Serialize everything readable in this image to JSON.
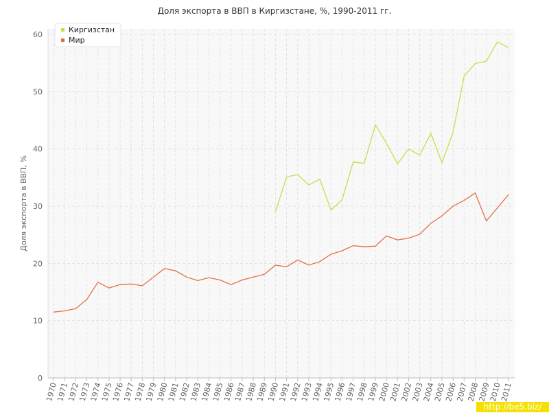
{
  "chart_data": {
    "type": "line",
    "title": "Доля экспорта в ВВП в Киргизстане, %, 1990-2011 гг.",
    "y_label": "Доля экспорта в ВВП, %",
    "categories": [
      "1970",
      "1971",
      "1972",
      "1973",
      "1974",
      "1975",
      "1976",
      "1977",
      "1978",
      "1979",
      "1980",
      "1981",
      "1982",
      "1983",
      "1984",
      "1985",
      "1986",
      "1987",
      "1988",
      "1989",
      "1990",
      "1991",
      "1992",
      "1993",
      "1994",
      "1995",
      "1996",
      "1997",
      "1998",
      "1999",
      "2000",
      "2001",
      "2002",
      "2003",
      "2004",
      "2005",
      "2006",
      "2007",
      "2008",
      "2009",
      "2010",
      "2011"
    ],
    "series": [
      {
        "name": "Киргизстан",
        "color": "#c5de4c",
        "values": [
          null,
          null,
          null,
          null,
          null,
          null,
          null,
          null,
          null,
          null,
          null,
          null,
          null,
          null,
          null,
          null,
          null,
          null,
          null,
          null,
          29.0,
          35.1,
          35.5,
          33.7,
          34.7,
          29.3,
          31.1,
          37.7,
          37.5,
          44.2,
          41.0,
          37.4,
          40.0,
          38.9,
          42.7,
          37.6,
          42.9,
          52.7,
          54.9,
          55.3,
          58.7,
          57.7
        ]
      },
      {
        "name": "Мир",
        "color": "#e2703f",
        "values": [
          11.5,
          11.7,
          12.1,
          13.7,
          16.7,
          15.7,
          16.3,
          16.4,
          16.1,
          17.6,
          19.1,
          18.7,
          17.6,
          17.0,
          17.5,
          17.1,
          16.3,
          17.1,
          17.6,
          18.1,
          19.7,
          19.4,
          20.6,
          19.7,
          20.3,
          21.6,
          22.2,
          23.1,
          22.9,
          23.0,
          24.8,
          24.1,
          24.4,
          25.1,
          27.0,
          28.3,
          30.0,
          31.0,
          32.3,
          27.4,
          29.7,
          32.0
        ]
      }
    ],
    "ylim": [
      0,
      60
    ],
    "yticks": [
      0,
      10,
      20,
      30,
      40,
      50,
      60
    ],
    "grid": true,
    "legend": "top-left",
    "watermark": "http://be5.biz/"
  }
}
